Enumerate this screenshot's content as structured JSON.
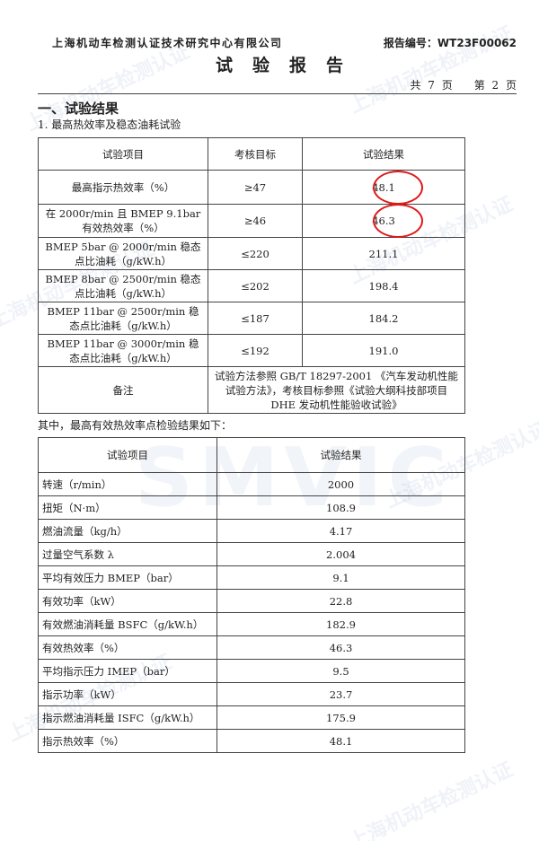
{
  "header": {
    "company": "上海机动车检测认证技术研究中心有限公司",
    "report_no": "报告编号：WT23F00062",
    "title": "试验报告",
    "pages": "共 7 页　　第 2 页"
  },
  "section": {
    "title": "一、试验结果",
    "subtitle": "1. 最高热效率及稳态油耗试验"
  },
  "table1": {
    "headers": [
      "试验项目",
      "考核目标",
      "试验结果"
    ],
    "rows": [
      {
        "item": "最高指示热效率（%）",
        "target": "≥47",
        "result": "48.1",
        "circled": true
      },
      {
        "item": "在 2000r/min 且 BMEP 9.1bar 有效热效率（%）",
        "target": "≥46",
        "result": "46.3",
        "circled": true
      },
      {
        "item": "BMEP 5bar @ 2000r/min 稳态点比油耗（g/kW.h）",
        "target": "≤220",
        "result": "211.1"
      },
      {
        "item": "BMEP 8bar @ 2500r/min 稳态点比油耗（g/kW.h）",
        "target": "≤202",
        "result": "198.4"
      },
      {
        "item": "BMEP 11bar @ 2500r/min 稳态点比油耗（g/kW.h）",
        "target": "≤187",
        "result": "184.2"
      },
      {
        "item": "BMEP 11bar @ 3000r/min 稳态点比油耗（g/kW.h）",
        "target": "≤192",
        "result": "191.0"
      }
    ],
    "remark_label": "备注",
    "remark": "试验方法参照 GB/T 18297-2001 《汽车发动机性能试验方法》，考核目标参照《试验大纲科技部项目 DHE 发动机性能验收试验》"
  },
  "note": "其中，最高有效热效率点检验结果如下：",
  "table2": {
    "headers": [
      "试验项目",
      "试验结果"
    ],
    "rows": [
      {
        "item": "转速（r/min）",
        "result": "2000"
      },
      {
        "item": "扭矩（N·m）",
        "result": "108.9"
      },
      {
        "item": "燃油流量（kg/h）",
        "result": "4.17"
      },
      {
        "item": "过量空气系数 λ",
        "result": "2.004"
      },
      {
        "item": "平均有效压力 BMEP（bar）",
        "result": "9.1"
      },
      {
        "item": "有效功率（kW）",
        "result": "22.8"
      },
      {
        "item": "有效燃油消耗量 BSFC（g/kW.h）",
        "result": "182.9"
      },
      {
        "item": "有效热效率（%）",
        "result": "46.3"
      },
      {
        "item": "平均指示压力 IMEP（bar）",
        "result": "9.5"
      },
      {
        "item": "指示功率（kW）",
        "result": "23.7"
      },
      {
        "item": "指示燃油消耗量 ISFC（g/kW.h）",
        "result": "175.9"
      },
      {
        "item": "指示热效率（%）",
        "result": "48.1"
      }
    ]
  },
  "watermark": {
    "text": "上海机动车检测认证技术研究中心有限公司",
    "logo": "SMVIC"
  },
  "colors": {
    "annotation_circle": "#e01818"
  }
}
